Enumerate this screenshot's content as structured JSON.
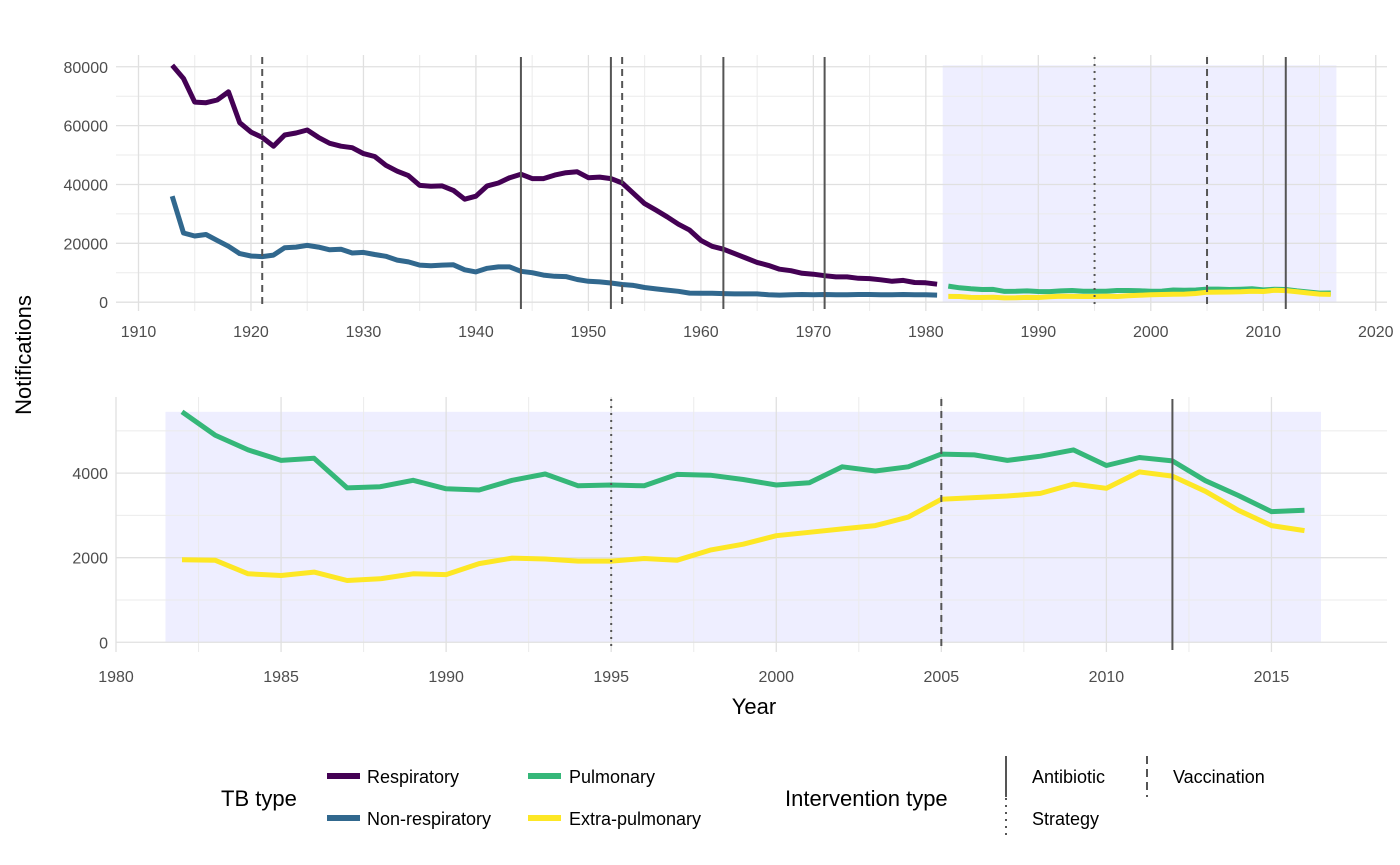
{
  "ylabel": "Notifications",
  "xlabel": "Year",
  "legend": {
    "tb_title": "TB type",
    "tb_items": [
      {
        "label": "Respiratory",
        "color": "#440154"
      },
      {
        "label": "Pulmonary",
        "color": "#35b779"
      },
      {
        "label": "Non-respiratory",
        "color": "#31688e"
      },
      {
        "label": "Extra-pulmonary",
        "color": "#fde725"
      }
    ],
    "int_title": "Intervention type",
    "int_items": [
      {
        "label": "Antibiotic",
        "style": "solid"
      },
      {
        "label": "Vaccination",
        "style": "dashed"
      },
      {
        "label": "Strategy",
        "style": "dotted"
      }
    ]
  },
  "chart_data": [
    {
      "type": "line",
      "panel": "top",
      "xlim": [
        1908,
        2021
      ],
      "ylim": [
        -3000,
        84000
      ],
      "x_ticks": [
        1910,
        1920,
        1930,
        1940,
        1950,
        1960,
        1970,
        1980,
        1990,
        2000,
        2010,
        2020
      ],
      "y_ticks": [
        0,
        20000,
        40000,
        60000,
        80000
      ],
      "grid": true,
      "shaded_region": {
        "from": 1981.5,
        "to": 2016.5,
        "ymin": 0,
        "ymax": 80500,
        "color": "#eeeeff"
      },
      "interventions": [
        {
          "year": 1921,
          "type": "dashed"
        },
        {
          "year": 1944,
          "type": "solid"
        },
        {
          "year": 1952,
          "type": "solid"
        },
        {
          "year": 1953,
          "type": "dashed"
        },
        {
          "year": 1962,
          "type": "solid"
        },
        {
          "year": 1971,
          "type": "solid"
        },
        {
          "year": 1995,
          "type": "dotted"
        },
        {
          "year": 2005,
          "type": "dashed"
        },
        {
          "year": 2012,
          "type": "solid"
        }
      ],
      "series": [
        {
          "name": "Respiratory",
          "color": "#440154",
          "x": [
            1913,
            1914,
            1915,
            1916,
            1917,
            1918,
            1919,
            1920,
            1921,
            1922,
            1923,
            1924,
            1925,
            1926,
            1927,
            1928,
            1929,
            1930,
            1931,
            1932,
            1933,
            1934,
            1935,
            1936,
            1937,
            1938,
            1939,
            1940,
            1941,
            1942,
            1943,
            1944,
            1945,
            1946,
            1947,
            1948,
            1949,
            1950,
            1951,
            1952,
            1953,
            1954,
            1955,
            1956,
            1957,
            1958,
            1959,
            1960,
            1961,
            1962,
            1963,
            1964,
            1965,
            1966,
            1967,
            1968,
            1969,
            1970,
            1971,
            1972,
            1973,
            1974,
            1975,
            1976,
            1977,
            1978,
            1979,
            1980,
            1981
          ],
          "y": [
            80500,
            76000,
            68000,
            67800,
            68700,
            71500,
            61000,
            57800,
            56000,
            53000,
            56800,
            57500,
            58500,
            56000,
            54000,
            53000,
            52500,
            50500,
            49500,
            46500,
            44500,
            43000,
            39700,
            39400,
            39500,
            38000,
            35000,
            36000,
            39500,
            40500,
            42300,
            43500,
            42000,
            42000,
            43200,
            44000,
            44300,
            42300,
            42500,
            42000,
            40500,
            37000,
            33500,
            31300,
            29000,
            26500,
            24500,
            21000,
            19000,
            18000,
            16500,
            15000,
            13500,
            12500,
            11200,
            10700,
            9800,
            9500,
            9000,
            8600,
            8600,
            8100,
            8000,
            7600,
            7100,
            7400,
            6700,
            6600,
            6100
          ]
        },
        {
          "name": "Non-respiratory",
          "color": "#31688e",
          "x": [
            1913,
            1914,
            1915,
            1916,
            1917,
            1918,
            1919,
            1920,
            1921,
            1922,
            1923,
            1924,
            1925,
            1926,
            1927,
            1928,
            1929,
            1930,
            1931,
            1932,
            1933,
            1934,
            1935,
            1936,
            1937,
            1938,
            1939,
            1940,
            1941,
            1942,
            1943,
            1944,
            1945,
            1946,
            1947,
            1948,
            1949,
            1950,
            1951,
            1952,
            1953,
            1954,
            1955,
            1956,
            1957,
            1958,
            1959,
            1960,
            1961,
            1962,
            1963,
            1964,
            1965,
            1966,
            1967,
            1968,
            1969,
            1970,
            1971,
            1972,
            1973,
            1974,
            1975,
            1976,
            1977,
            1978,
            1979,
            1980,
            1981
          ],
          "y": [
            36000,
            23500,
            22500,
            23000,
            21000,
            19000,
            16500,
            15700,
            15500,
            16000,
            18500,
            18700,
            19300,
            18700,
            17800,
            18000,
            16700,
            16900,
            16200,
            15600,
            14300,
            13700,
            12600,
            12400,
            12600,
            12700,
            11000,
            10300,
            11500,
            12000,
            12000,
            10500,
            10000,
            9200,
            8800,
            8700,
            7700,
            7100,
            6900,
            6500,
            6000,
            5700,
            5000,
            4500,
            4100,
            3700,
            3100,
            3000,
            3000,
            2900,
            2800,
            2800,
            2800,
            2500,
            2400,
            2500,
            2600,
            2500,
            2600,
            2500,
            2500,
            2600,
            2600,
            2500,
            2500,
            2600,
            2500,
            2500,
            2400
          ]
        },
        {
          "name": "Pulmonary",
          "color": "#35b779",
          "x": [
            1982,
            1983,
            1984,
            1985,
            1986,
            1987,
            1988,
            1989,
            1990,
            1991,
            1992,
            1993,
            1994,
            1995,
            1996,
            1997,
            1998,
            1999,
            2000,
            2001,
            2002,
            2003,
            2004,
            2005,
            2006,
            2007,
            2008,
            2009,
            2010,
            2011,
            2012,
            2013,
            2014,
            2015,
            2016
          ],
          "y": [
            5450,
            4900,
            4550,
            4300,
            4350,
            3650,
            3680,
            3830,
            3630,
            3600,
            3830,
            3980,
            3700,
            3720,
            3700,
            3970,
            3950,
            3850,
            3720,
            3770,
            4150,
            4050,
            4150,
            4450,
            4430,
            4300,
            4400,
            4550,
            4180,
            4370,
            4290,
            3820,
            3470,
            3090,
            3120
          ]
        },
        {
          "name": "Extra-pulmonary",
          "color": "#fde725",
          "x": [
            1982,
            1983,
            1984,
            1985,
            1986,
            1987,
            1988,
            1989,
            1990,
            1991,
            1992,
            1993,
            1994,
            1995,
            1996,
            1997,
            1998,
            1999,
            2000,
            2001,
            2002,
            2003,
            2004,
            2005,
            2006,
            2007,
            2008,
            2009,
            2010,
            2011,
            2012,
            2013,
            2014,
            2015,
            2016
          ],
          "y": [
            1950,
            1940,
            1620,
            1580,
            1660,
            1460,
            1500,
            1620,
            1600,
            1860,
            1990,
            1970,
            1920,
            1920,
            1980,
            1940,
            2180,
            2320,
            2520,
            2600,
            2680,
            2760,
            2960,
            3380,
            3420,
            3460,
            3520,
            3740,
            3640,
            4030,
            3930,
            3570,
            3120,
            2760,
            2640
          ]
        }
      ]
    },
    {
      "type": "line",
      "panel": "bottom",
      "xlim": [
        1980,
        2018.5
      ],
      "ylim": [
        -230,
        5800
      ],
      "x_ticks": [
        1980,
        1985,
        1990,
        1995,
        2000,
        2005,
        2010,
        2015
      ],
      "y_ticks": [
        0,
        2000,
        4000
      ],
      "grid": true,
      "shaded_region": {
        "from": 1981.5,
        "to": 2016.5,
        "ymin": 0,
        "ymax": 5450,
        "color": "#eeeeff"
      },
      "interventions": [
        {
          "year": 1995,
          "type": "dotted"
        },
        {
          "year": 2005,
          "type": "dashed"
        },
        {
          "year": 2012,
          "type": "solid"
        }
      ],
      "series": [
        {
          "name": "Pulmonary",
          "color": "#35b779",
          "x": [
            1982,
            1983,
            1984,
            1985,
            1986,
            1987,
            1988,
            1989,
            1990,
            1991,
            1992,
            1993,
            1994,
            1995,
            1996,
            1997,
            1998,
            1999,
            2000,
            2001,
            2002,
            2003,
            2004,
            2005,
            2006,
            2007,
            2008,
            2009,
            2010,
            2011,
            2012,
            2013,
            2014,
            2015,
            2016
          ],
          "y": [
            5450,
            4900,
            4550,
            4300,
            4350,
            3650,
            3680,
            3830,
            3630,
            3600,
            3830,
            3980,
            3700,
            3720,
            3700,
            3970,
            3950,
            3850,
            3720,
            3770,
            4150,
            4050,
            4150,
            4450,
            4430,
            4300,
            4400,
            4550,
            4180,
            4370,
            4290,
            3820,
            3470,
            3090,
            3120
          ]
        },
        {
          "name": "Extra-pulmonary",
          "color": "#fde725",
          "x": [
            1982,
            1983,
            1984,
            1985,
            1986,
            1987,
            1988,
            1989,
            1990,
            1991,
            1992,
            1993,
            1994,
            1995,
            1996,
            1997,
            1998,
            1999,
            2000,
            2001,
            2002,
            2003,
            2004,
            2005,
            2006,
            2007,
            2008,
            2009,
            2010,
            2011,
            2012,
            2013,
            2014,
            2015,
            2016
          ],
          "y": [
            1950,
            1940,
            1620,
            1580,
            1660,
            1460,
            1500,
            1620,
            1600,
            1860,
            1990,
            1970,
            1920,
            1920,
            1980,
            1940,
            2180,
            2320,
            2520,
            2600,
            2680,
            2760,
            2960,
            3380,
            3420,
            3460,
            3520,
            3740,
            3640,
            4030,
            3930,
            3570,
            3120,
            2760,
            2640
          ]
        }
      ]
    }
  ]
}
